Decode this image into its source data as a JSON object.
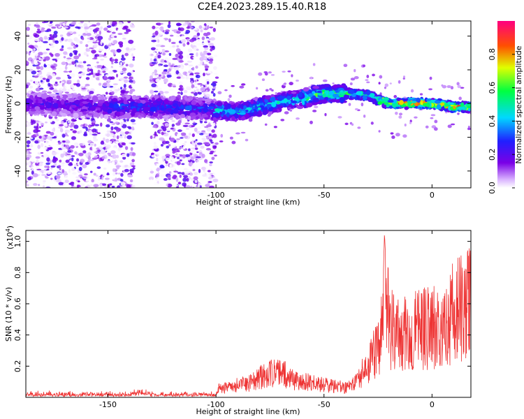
{
  "title": "C2E4.2023.289.15.40.R18",
  "chart_data": [
    {
      "type": "heatmap",
      "xlabel": "Height of straight line (km)",
      "ylabel": "Frequency (Hz)",
      "xlim": [
        -188,
        18
      ],
      "ylim": [
        -50,
        49
      ],
      "xticks": [
        -150,
        -100,
        -50,
        0
      ],
      "yticks": [
        -40,
        -20,
        0,
        20,
        40
      ],
      "ridge": {
        "x": [
          -188,
          -150,
          -120,
          -100,
          -90,
          -80,
          -70,
          -60,
          -50,
          -40,
          -30,
          -25,
          -20,
          -15,
          -10,
          0,
          10,
          18
        ],
        "y": [
          0,
          -2,
          -2,
          -4,
          -5,
          -2,
          1,
          3,
          6,
          6,
          5,
          2,
          0,
          0,
          0,
          0,
          -2,
          -2
        ]
      },
      "noise_region_x": [
        -188,
        -100
      ],
      "gap_x": [
        -138,
        -130
      ],
      "colorbar": {
        "label": "Normalized spectral amplitude",
        "ticks": [
          0.0,
          0.2,
          0.4,
          0.6,
          0.8
        ],
        "range": [
          0,
          1
        ],
        "colormap": "rainbow (white-purple-blue-cyan-green-yellow-red-magenta)"
      }
    },
    {
      "type": "line",
      "xlabel": "Height of straight line (km)",
      "ylabel": "SNR (10 * v/v)",
      "yscale_label": "(x10",
      "yscale_exp": "4",
      "xlim": [
        -188,
        18
      ],
      "ylim": [
        0,
        1.07
      ],
      "xticks": [
        -150,
        -100,
        -50,
        0
      ],
      "yticks": [
        0.2,
        0.4,
        0.6,
        0.8,
        1.0
      ],
      "series": [
        {
          "color": "#ee3333",
          "x": [
            -188,
            -140,
            -135,
            -130,
            -100,
            -99,
            -95,
            -90,
            -85,
            -80,
            -75,
            -70,
            -65,
            -60,
            -55,
            -50,
            -45,
            -40,
            -35,
            -30,
            -25,
            -23,
            -22,
            -20,
            -15,
            -10,
            -5,
            0,
            5,
            10,
            15,
            18
          ],
          "y": [
            0.02,
            0.02,
            0.05,
            0.02,
            0.02,
            0.06,
            0.07,
            0.09,
            0.1,
            0.14,
            0.17,
            0.18,
            0.13,
            0.12,
            0.1,
            0.09,
            0.08,
            0.07,
            0.12,
            0.22,
            0.35,
            0.55,
            1.05,
            0.5,
            0.45,
            0.45,
            0.5,
            0.5,
            0.55,
            0.6,
            0.65,
            0.7
          ]
        }
      ]
    }
  ]
}
